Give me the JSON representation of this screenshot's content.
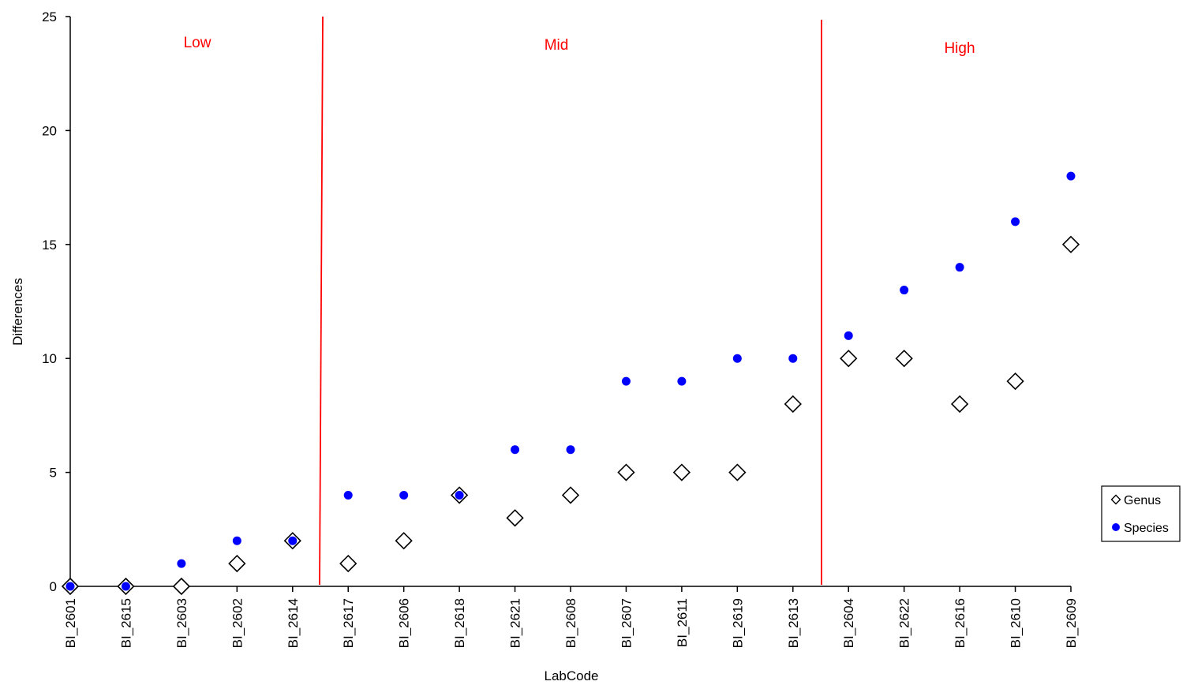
{
  "chart_data": {
    "type": "scatter",
    "xlabel": "LabCode",
    "ylabel": "Differences",
    "ylim": [
      0,
      25
    ],
    "yticks": [
      0,
      5,
      10,
      15,
      20,
      25
    ],
    "grid": false,
    "legend_position": "right",
    "categories": [
      "BI_2601",
      "BI_2615",
      "BI_2603",
      "BI_2602",
      "BI_2614",
      "BI_2617",
      "BI_2606",
      "BI_2618",
      "BI_2621",
      "BI_2608",
      "BI_2607",
      "BI_2611",
      "BI_2619",
      "BI_2613",
      "BI_2604",
      "BI_2622",
      "BI_2616",
      "BI_2610",
      "BI_2609"
    ],
    "series": [
      {
        "name": "Genus",
        "marker": "diamond-open",
        "color": "#000000",
        "values": [
          0,
          0,
          0,
          1,
          2,
          1,
          2,
          4,
          3,
          4,
          5,
          5,
          5,
          8,
          10,
          10,
          8,
          9,
          15
        ]
      },
      {
        "name": "Species",
        "marker": "circle-filled",
        "color": "#0000ff",
        "values": [
          0,
          0,
          1,
          2,
          2,
          4,
          4,
          4,
          6,
          6,
          9,
          9,
          10,
          10,
          11,
          13,
          14,
          16,
          18
        ]
      }
    ],
    "regions": [
      {
        "label": "Low"
      },
      {
        "label": "Mid"
      },
      {
        "label": "High"
      }
    ],
    "divider_color": "#ff0000"
  }
}
